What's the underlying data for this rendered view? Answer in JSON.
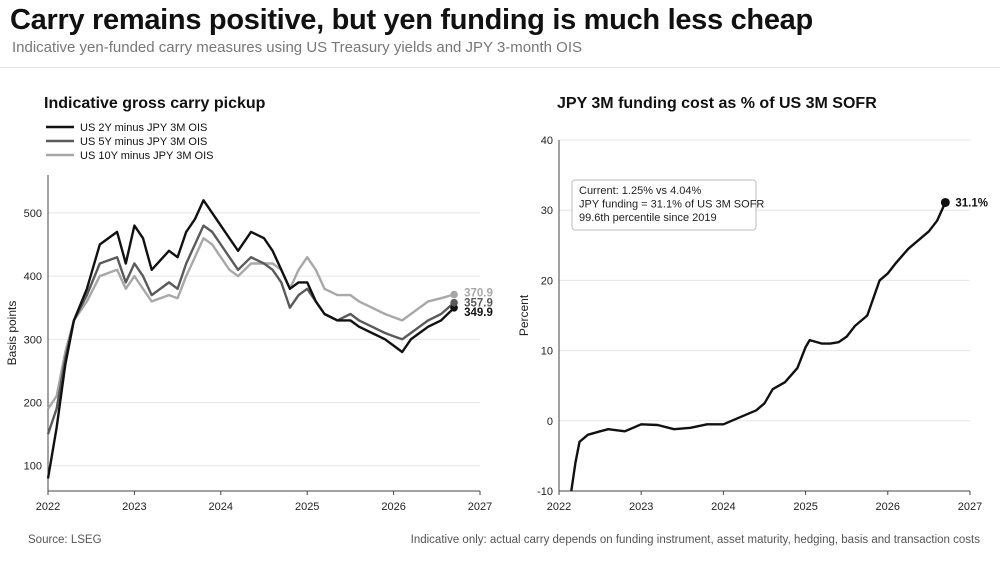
{
  "header": {
    "title": "Carry remains positive, but yen funding is much less cheap",
    "subtitle": "Indicative yen-funded carry measures using US Treasury yields and JPY 3-month OIS"
  },
  "footer": {
    "source": "Source: LSEG",
    "note": "Indicative only: actual carry depends on funding instrument, asset maturity, hedging, basis and transaction costs"
  },
  "colors": {
    "us2y": "#111111",
    "us5y": "#5a5a5a",
    "us10y": "#a8a8a8",
    "grid": "#e6e6e6",
    "axis": "#444444"
  },
  "chart_data": [
    {
      "type": "line",
      "title": "Indicative gross carry pickup",
      "ylabel": "Basis points",
      "xlabel": "",
      "xlim": [
        2022,
        2027
      ],
      "ylim": [
        60,
        560
      ],
      "x_ticks": [
        "2022",
        "2023",
        "2024",
        "2025",
        "2026",
        "2027"
      ],
      "y_ticks": [
        "100",
        "200",
        "300",
        "400",
        "500"
      ],
      "legend_position": "top-left",
      "grid": "horizontal",
      "series": [
        {
          "name": "US 2Y minus JPY 3M OIS",
          "end_label": "349.9",
          "x": [
            2022.0,
            2022.1,
            2022.2,
            2022.3,
            2022.45,
            2022.6,
            2022.8,
            2022.9,
            2023.0,
            2023.1,
            2023.2,
            2023.4,
            2023.5,
            2023.6,
            2023.7,
            2023.8,
            2023.9,
            2024.0,
            2024.1,
            2024.2,
            2024.35,
            2024.5,
            2024.6,
            2024.7,
            2024.8,
            2024.9,
            2025.0,
            2025.1,
            2025.2,
            2025.35,
            2025.5,
            2025.6,
            2025.75,
            2025.9,
            2026.0,
            2026.1,
            2026.2,
            2026.3,
            2026.4,
            2026.55,
            2026.7
          ],
          "values": [
            80,
            160,
            260,
            330,
            380,
            450,
            470,
            420,
            480,
            460,
            410,
            440,
            430,
            470,
            490,
            520,
            500,
            480,
            460,
            440,
            470,
            460,
            440,
            410,
            380,
            390,
            390,
            360,
            340,
            330,
            330,
            320,
            310,
            300,
            290,
            280,
            300,
            310,
            320,
            330,
            349.9
          ]
        },
        {
          "name": "US 5Y minus JPY 3M OIS",
          "end_label": "357.9",
          "x": [
            2022.0,
            2022.1,
            2022.2,
            2022.3,
            2022.45,
            2022.6,
            2022.8,
            2022.9,
            2023.0,
            2023.1,
            2023.2,
            2023.4,
            2023.5,
            2023.6,
            2023.7,
            2023.8,
            2023.9,
            2024.0,
            2024.1,
            2024.2,
            2024.35,
            2024.5,
            2024.6,
            2024.7,
            2024.8,
            2024.9,
            2025.0,
            2025.1,
            2025.2,
            2025.35,
            2025.5,
            2025.6,
            2025.75,
            2025.9,
            2026.0,
            2026.1,
            2026.2,
            2026.3,
            2026.4,
            2026.55,
            2026.7
          ],
          "values": [
            150,
            190,
            270,
            330,
            370,
            420,
            430,
            390,
            420,
            400,
            370,
            390,
            380,
            420,
            450,
            480,
            470,
            450,
            430,
            410,
            430,
            420,
            410,
            390,
            350,
            370,
            380,
            360,
            340,
            330,
            340,
            330,
            320,
            310,
            305,
            300,
            310,
            320,
            330,
            340,
            357.9
          ]
        },
        {
          "name": "US 10Y minus JPY 3M OIS",
          "end_label": "370.9",
          "x": [
            2022.0,
            2022.1,
            2022.2,
            2022.3,
            2022.45,
            2022.6,
            2022.8,
            2022.9,
            2023.0,
            2023.1,
            2023.2,
            2023.4,
            2023.5,
            2023.6,
            2023.7,
            2023.8,
            2023.9,
            2024.0,
            2024.1,
            2024.2,
            2024.35,
            2024.5,
            2024.6,
            2024.7,
            2024.8,
            2024.9,
            2025.0,
            2025.1,
            2025.2,
            2025.35,
            2025.5,
            2025.6,
            2025.75,
            2025.9,
            2026.0,
            2026.1,
            2026.2,
            2026.3,
            2026.4,
            2026.55,
            2026.7
          ],
          "values": [
            190,
            210,
            280,
            330,
            360,
            400,
            410,
            380,
            400,
            380,
            360,
            370,
            365,
            400,
            430,
            460,
            450,
            430,
            410,
            400,
            420,
            420,
            420,
            410,
            380,
            410,
            430,
            410,
            380,
            370,
            370,
            360,
            350,
            340,
            335,
            330,
            340,
            350,
            360,
            365,
            370.9
          ]
        }
      ]
    },
    {
      "type": "line",
      "title": "JPY 3M funding cost as % of US 3M SOFR",
      "ylabel": "Percent",
      "xlabel": "",
      "xlim": [
        2022,
        2027
      ],
      "ylim": [
        -10,
        40
      ],
      "x_ticks": [
        "2022",
        "2023",
        "2024",
        "2025",
        "2026",
        "2027"
      ],
      "y_ticks": [
        "-10",
        "0",
        "10",
        "20",
        "30",
        "40"
      ],
      "grid": "horizontal",
      "annotation": [
        "Current: 1.25% vs 4.04%",
        "JPY funding = 31.1% of US 3M SOFR",
        "99.6th percentile since 2019"
      ],
      "series": [
        {
          "name": "",
          "end_label": "31.1%",
          "x": [
            2022.15,
            2022.2,
            2022.25,
            2022.35,
            2022.5,
            2022.6,
            2022.8,
            2023.0,
            2023.2,
            2023.4,
            2023.6,
            2023.8,
            2024.0,
            2024.2,
            2024.4,
            2024.5,
            2024.6,
            2024.75,
            2024.9,
            2025.0,
            2025.05,
            2025.2,
            2025.3,
            2025.4,
            2025.5,
            2025.6,
            2025.75,
            2025.9,
            2026.0,
            2026.1,
            2026.25,
            2026.4,
            2026.5,
            2026.6,
            2026.7
          ],
          "values": [
            -10,
            -6,
            -3,
            -2,
            -1.5,
            -1.2,
            -1.5,
            -0.5,
            -0.6,
            -1.2,
            -1.0,
            -0.5,
            -0.5,
            0.5,
            1.5,
            2.5,
            4.5,
            5.5,
            7.5,
            10.5,
            11.5,
            11.0,
            11.0,
            11.2,
            12.0,
            13.5,
            15.0,
            20.0,
            21.0,
            22.5,
            24.5,
            26.0,
            27.0,
            28.5,
            31.1
          ]
        }
      ]
    }
  ]
}
